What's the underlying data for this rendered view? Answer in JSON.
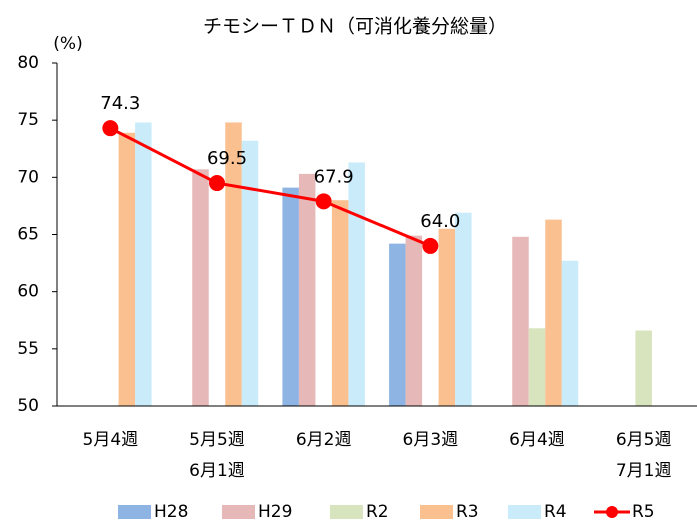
{
  "chart_data": {
    "type": "bar",
    "title": "チモシーＴＤＮ（可消化養分総量）",
    "y_unit": "(%)",
    "categories": [
      [
        "5月4週"
      ],
      [
        "5月5週",
        "6月1週"
      ],
      [
        "6月2週"
      ],
      [
        "6月3週"
      ],
      [
        "6月4週"
      ],
      [
        "6月5週",
        "7月1週"
      ]
    ],
    "series": [
      {
        "name": "H28",
        "color": "#8eb4e3",
        "values": [
          null,
          null,
          69.1,
          64.2,
          null,
          null
        ]
      },
      {
        "name": "H29",
        "color": "#e6b9b8",
        "values": [
          null,
          70.7,
          70.3,
          64.9,
          64.8,
          null
        ]
      },
      {
        "name": "R2",
        "color": "#d7e4bd",
        "values": [
          null,
          null,
          null,
          null,
          56.8,
          56.6
        ]
      },
      {
        "name": "R3",
        "color": "#fac090",
        "values": [
          73.9,
          74.8,
          68.0,
          65.5,
          66.3,
          null
        ]
      },
      {
        "name": "R4",
        "color": "#c9ebfa",
        "values": [
          74.8,
          73.2,
          71.3,
          66.9,
          62.7,
          null
        ]
      },
      {
        "name": "R5",
        "color": "#ff0000",
        "type": "line",
        "values": [
          74.3,
          69.5,
          67.9,
          64.0,
          null,
          null
        ],
        "value_labels": [
          "74.3",
          "69.5",
          "67.9",
          "64.0",
          null,
          null
        ]
      }
    ],
    "ylim": [
      50,
      80
    ],
    "yticks": [
      50,
      55,
      60,
      65,
      70,
      75,
      80
    ],
    "grid": false,
    "legend": "bottom"
  }
}
